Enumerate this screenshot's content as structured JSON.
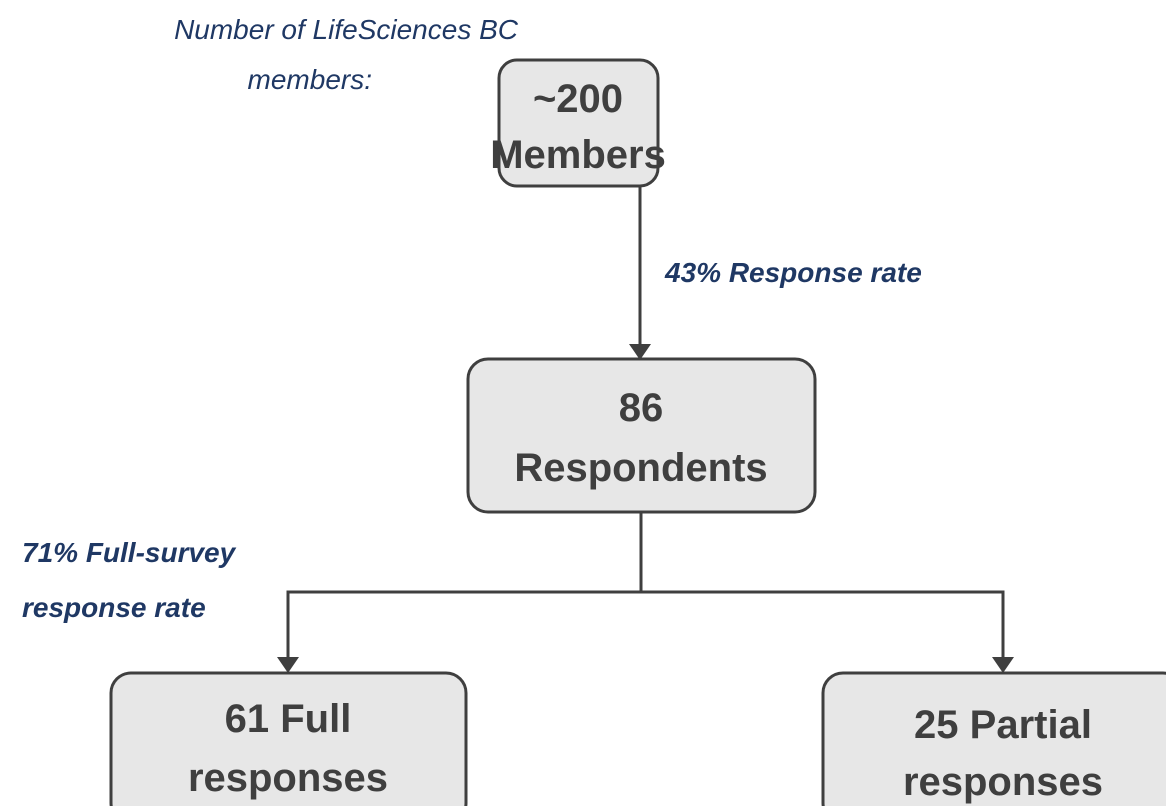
{
  "nodes": [
    {
      "lines": [
        "~200",
        "Members"
      ]
    },
    {
      "lines": [
        "86",
        "Respondents"
      ]
    },
    {
      "lines": [
        "61 Full",
        "responses"
      ]
    },
    {
      "lines": [
        "25 Partial",
        "responses"
      ]
    }
  ],
  "annotations": [
    {
      "lines": [
        "Number of LifeSciences BC",
        "members:"
      ]
    },
    {
      "lines": [
        "43% Response rate"
      ]
    },
    {
      "lines": [
        "71% Full-survey",
        "response rate"
      ]
    }
  ]
}
